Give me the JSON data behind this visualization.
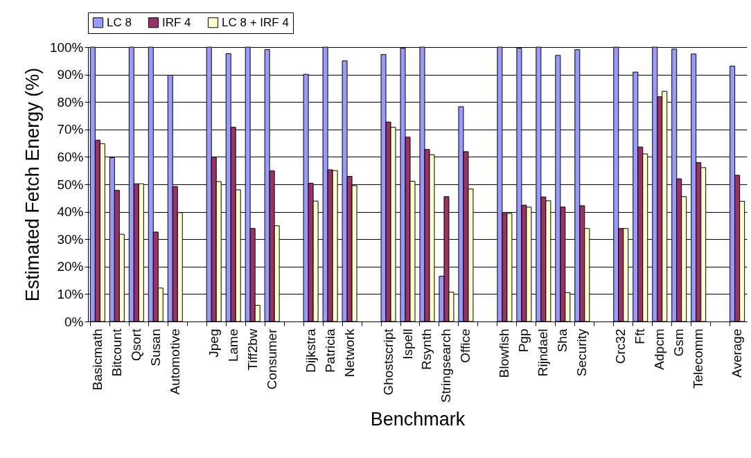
{
  "chart_data": {
    "type": "bar",
    "xlabel": "Benchmark",
    "ylabel": "Estimated Fetch Energy (%)",
    "legend": "top",
    "grid": "y",
    "categories": [
      "Basicmath",
      "Bitcount",
      "Qsort",
      "Susan",
      "Automotive",
      null,
      "Jpeg",
      "Lame",
      "Tiff2bw",
      "Consumer",
      null,
      "Dijkstra",
      "Patricia",
      "Network",
      null,
      "Ghostscript",
      "Ispell",
      "Rsynth",
      "Stringsearch",
      "Office",
      null,
      "Blowfish",
      "Pgp",
      "Rijndael",
      "Sha",
      "Security",
      null,
      "Crc32",
      "Fft",
      "Adpcm",
      "Gsm",
      "Telecomm",
      null,
      "Average"
    ],
    "series": [
      {
        "name": "LC 8",
        "color": "#9999ff",
        "values": [
          100,
          59.7,
          100,
          100,
          89.8,
          null,
          100,
          97.6,
          100,
          99.1,
          null,
          90.1,
          100,
          95,
          null,
          97.3,
          99.6,
          100,
          16.5,
          78.3,
          null,
          100,
          99.6,
          100,
          97,
          99.1,
          null,
          100,
          90.9,
          100,
          99.3,
          97.5,
          null,
          93.1
        ]
      },
      {
        "name": "IRF 4",
        "color": "#993366",
        "values": [
          66.1,
          47.8,
          50.2,
          32.6,
          49.2,
          null,
          59.9,
          70.8,
          33.9,
          54.9,
          null,
          50.4,
          55.3,
          52.9,
          null,
          72.7,
          67.2,
          62.7,
          45.5,
          61.9,
          null,
          39.4,
          42.4,
          45.4,
          41.7,
          42.2,
          null,
          33.9,
          63.6,
          81.9,
          52,
          57.9,
          null,
          53.3
        ]
      },
      {
        "name": "LC 8 + IRF 4",
        "color": "#ffffcc",
        "values": [
          64.8,
          31.8,
          50.2,
          12.2,
          39.7,
          null,
          51,
          48,
          5.9,
          34.9,
          null,
          43.9,
          55,
          49.5,
          null,
          70.8,
          51.1,
          60.8,
          10.7,
          48.3,
          null,
          39.4,
          41.7,
          44,
          10.5,
          33.9,
          null,
          33.9,
          61.1,
          83.9,
          45.5,
          56.1,
          null,
          43.8
        ]
      }
    ],
    "ylim": [
      0,
      100
    ],
    "yticks": [
      {
        "value": 0,
        "label": "0%"
      },
      {
        "value": 10,
        "label": "10%"
      },
      {
        "value": 20,
        "label": "20%"
      },
      {
        "value": 30,
        "label": "30%"
      },
      {
        "value": 40,
        "label": "40%"
      },
      {
        "value": 50,
        "label": "50%"
      },
      {
        "value": 60,
        "label": "60%"
      },
      {
        "value": 70,
        "label": "70%"
      },
      {
        "value": 80,
        "label": "80%"
      },
      {
        "value": 90,
        "label": "90%"
      },
      {
        "value": 100,
        "label": "100%"
      }
    ]
  }
}
